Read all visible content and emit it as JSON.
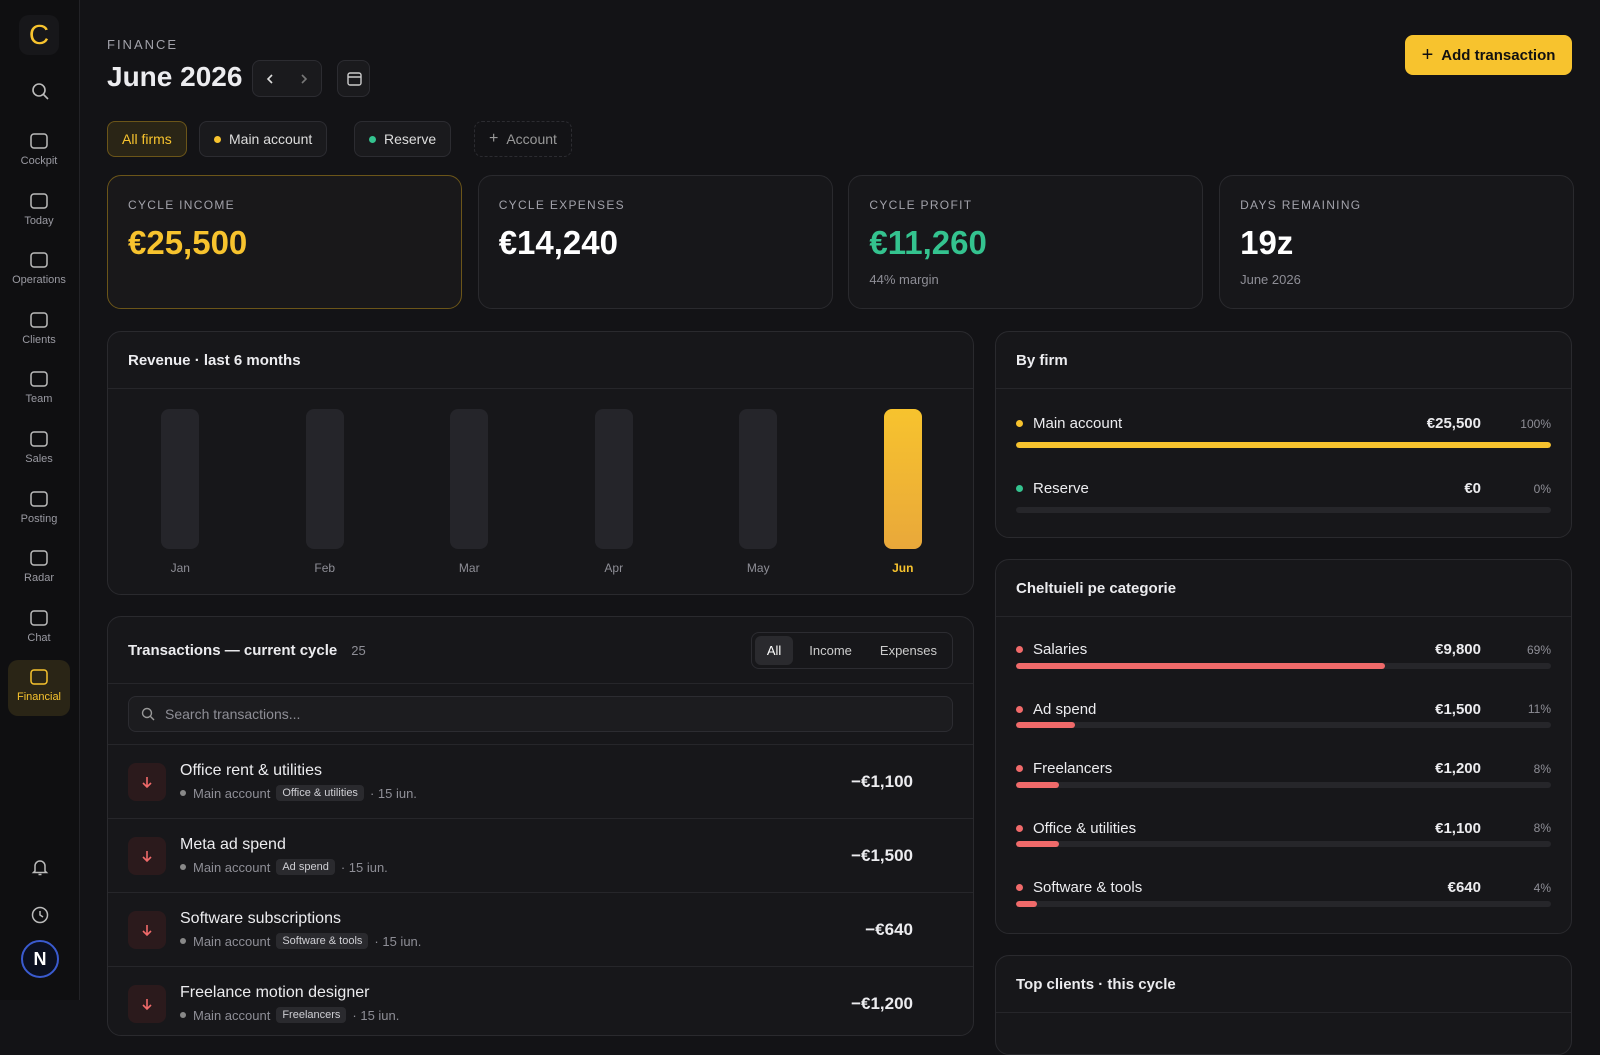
{
  "sidebar": {
    "logo": "C",
    "items": [
      "Cockpit",
      "Today",
      "Operations",
      "Clients",
      "Team",
      "Sales",
      "Posting",
      "Radar",
      "Chat",
      "Financial"
    ],
    "active": "Financial",
    "avatar": "N"
  },
  "header": {
    "section": "FINANCE",
    "title": "June 2026",
    "action": "Add transaction"
  },
  "filters": [
    "All firms",
    "Main account",
    "Reserve",
    "Account"
  ],
  "stats": [
    {
      "label": "CYCLE INCOME",
      "value": "€25,500"
    },
    {
      "label": "CYCLE EXPENSES",
      "value": "€14,240"
    },
    {
      "label": "CYCLE PROFIT",
      "value": "€11,260",
      "note": "44% margin"
    },
    {
      "label": "DAYS REMAINING",
      "value": "19z",
      "note": "June 2026"
    }
  ],
  "revenue": {
    "title": "Revenue · last 6 months",
    "categories": [
      "Jan",
      "Feb",
      "Mar",
      "Apr",
      "May",
      "Jun"
    ],
    "values": [
      0,
      0,
      0,
      0,
      0,
      25500
    ],
    "color": "#f7c32e"
  },
  "transactions": {
    "title": "Transactions — current cycle",
    "count": 25,
    "tabs": [
      "All",
      "Income",
      "Expenses"
    ],
    "search_placeholder": "Search transactions...",
    "rows": [
      {
        "name": "Office rent & utilities",
        "account": "Main account",
        "tag": "Office & utilities",
        "date": "· 15 iun.",
        "amount": "−€1,100"
      },
      {
        "name": "Meta ad spend",
        "account": "Main account",
        "tag": "Ad spend",
        "date": "· 15 iun.",
        "amount": "−€1,500"
      },
      {
        "name": "Software subscriptions",
        "account": "Main account",
        "tag": "Software & tools",
        "date": "· 15 iun.",
        "amount": "−€640"
      },
      {
        "name": "Freelance motion designer",
        "account": "Main account",
        "tag": "Freelancers",
        "date": "· 15 iun.",
        "amount": "−€1,200"
      }
    ]
  },
  "by_firm": {
    "title": "By firm",
    "items": [
      {
        "name": "Main account",
        "amount": "€25,500",
        "pct": 100,
        "pct_label": "100%",
        "color": "#f7c32e"
      },
      {
        "name": "Reserve",
        "amount": "€0",
        "pct": 0,
        "pct_label": "0%",
        "color": "#34c38f"
      }
    ]
  },
  "expenses": {
    "title": "Cheltuieli pe categorie",
    "items": [
      {
        "name": "Salaries",
        "amount": "€9,800",
        "pct": 69,
        "pct_label": "69%",
        "color": "#f06a6a"
      },
      {
        "name": "Ad spend",
        "amount": "€1,500",
        "pct": 11,
        "pct_label": "11%",
        "color": "#f06a6a"
      },
      {
        "name": "Freelancers",
        "amount": "€1,200",
        "pct": 8,
        "pct_label": "8%",
        "color": "#f06a6a"
      },
      {
        "name": "Office & utilities",
        "amount": "€1,100",
        "pct": 8,
        "pct_label": "8%",
        "color": "#f06a6a"
      },
      {
        "name": "Software & tools",
        "amount": "€640",
        "pct": 4,
        "pct_label": "4%",
        "color": "#f06a6a"
      }
    ]
  },
  "top_clients": {
    "title": "Top clients · this cycle"
  }
}
